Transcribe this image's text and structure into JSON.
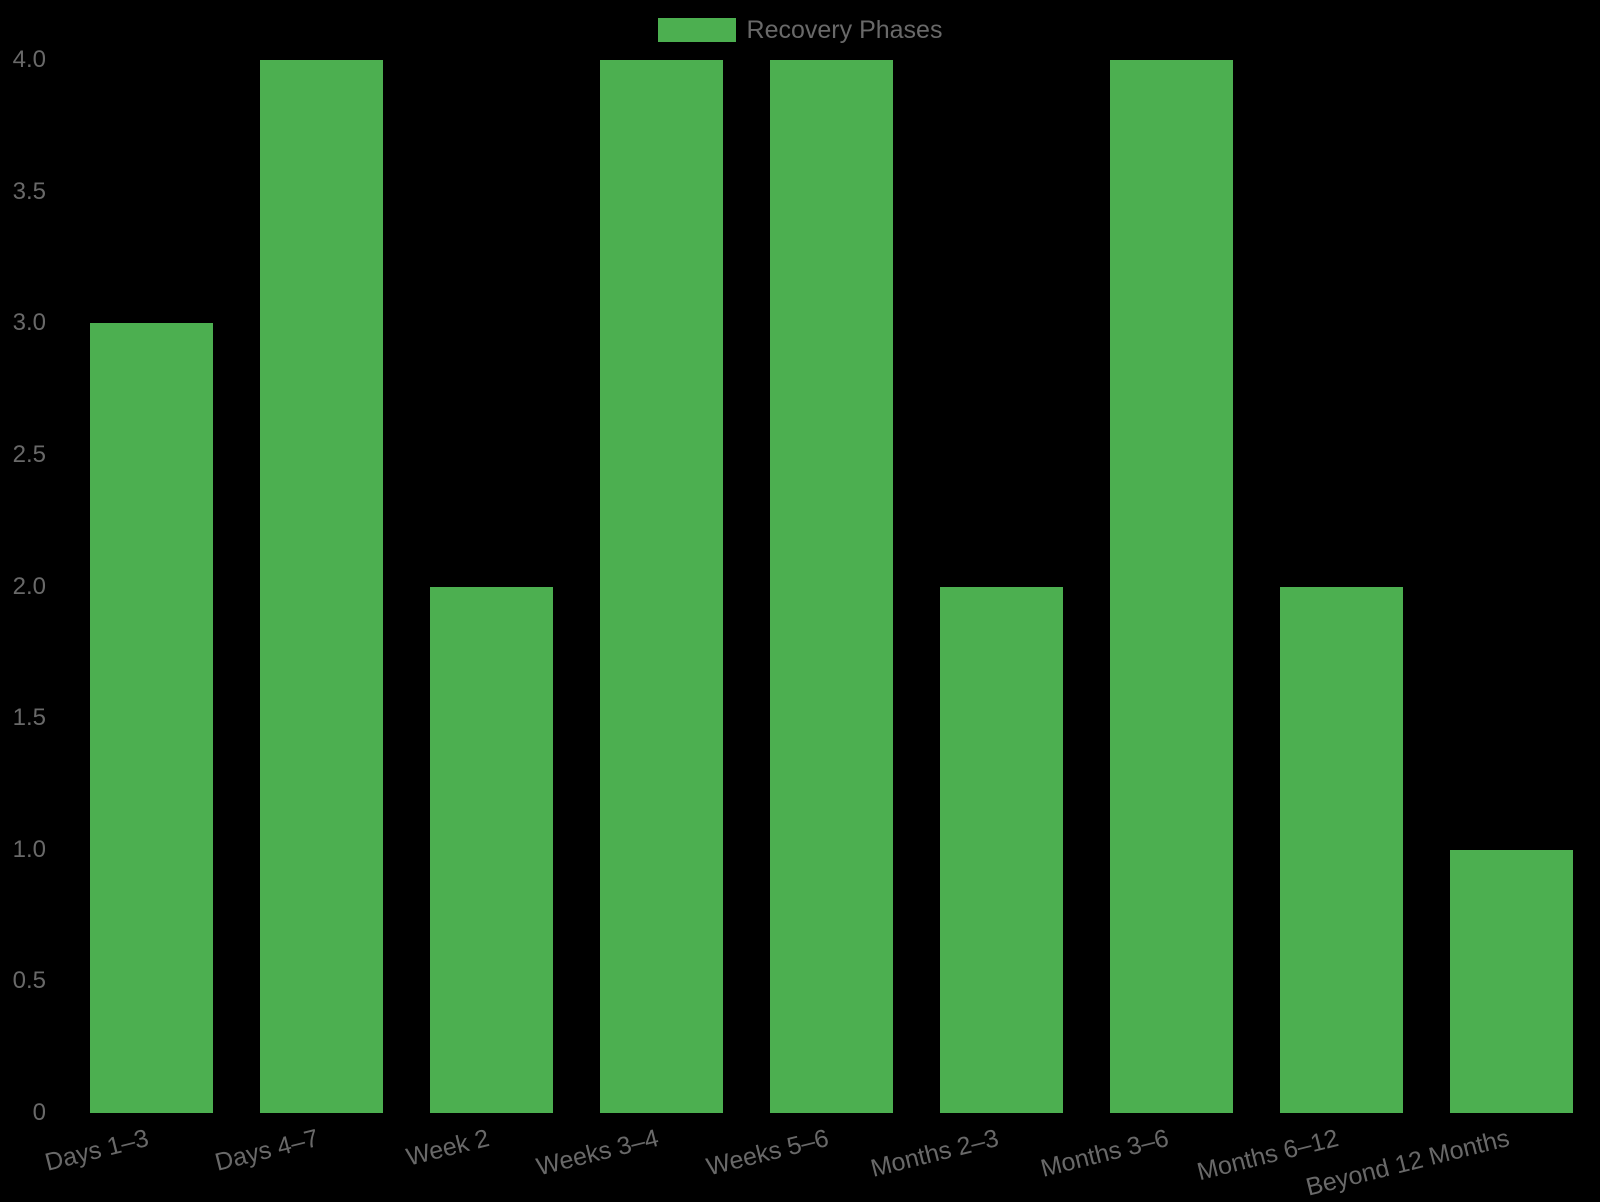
{
  "legend": {
    "label": "Recovery Phases"
  },
  "colors": {
    "background": "#000000",
    "bar_green": "#4caf50",
    "axis_text_gray": "#696969"
  },
  "chart_data": {
    "type": "bar",
    "title": "",
    "xlabel": "",
    "ylabel": "",
    "series_name": "Recovery Phases",
    "categories": [
      "Days 1–3",
      "Days 4–7",
      "Week 2",
      "Weeks 3–4",
      "Weeks 5–6",
      "Months 2–3",
      "Months 3–6",
      "Months 6–12",
      "Beyond 12 Months"
    ],
    "values": [
      3,
      4,
      2,
      4,
      4,
      2,
      4,
      2,
      1
    ],
    "ylim": [
      0,
      4
    ],
    "ytick_labels": [
      "0",
      "0.5",
      "1.0",
      "1.5",
      "2.0",
      "2.5",
      "3.0",
      "3.5",
      "4.0"
    ],
    "grid": false,
    "legend_position": "top-center",
    "bar_color": "#4caf50",
    "x_label_rotation_deg": -14
  }
}
